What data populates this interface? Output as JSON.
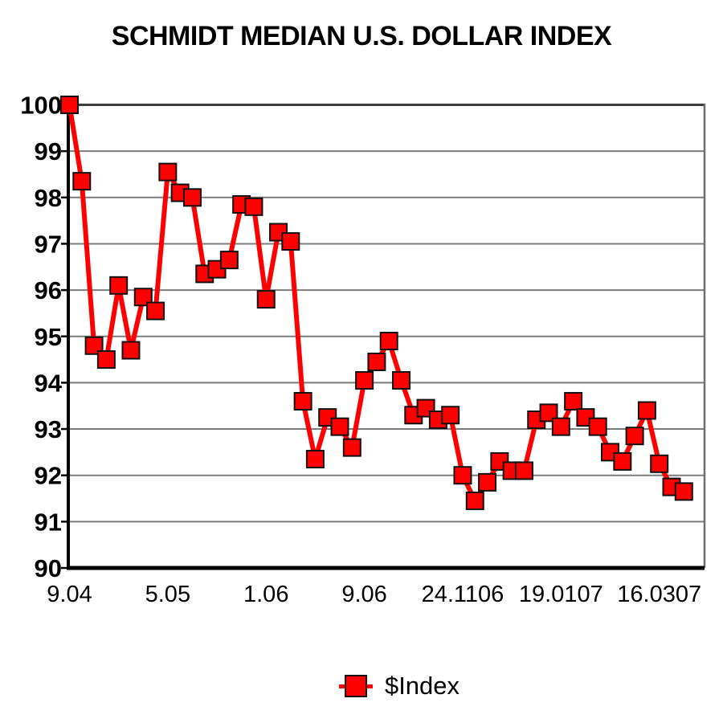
{
  "title": "SCHMIDT MEDIAN U.S. DOLLAR INDEX",
  "legend": {
    "label": "$Index"
  },
  "colors": {
    "series": "#ff0000",
    "marker_border": "#111111",
    "gridline": "#7b7b7b",
    "frame_top": "#3c3c3c",
    "frame_right": "#6e6e6e",
    "axis": "#000000",
    "background": "#ffffff",
    "text": "#000000"
  },
  "chart_data": {
    "type": "line",
    "title": "SCHMIDT MEDIAN U.S. DOLLAR INDEX",
    "marker": "square",
    "grid": "horizontal",
    "legend_position": "bottom",
    "ylim": [
      90,
      100
    ],
    "y_ticks": [
      90,
      91,
      92,
      93,
      94,
      95,
      96,
      97,
      98,
      99,
      100
    ],
    "x_tick_labels": [
      "9.04",
      "5.05",
      "1.06",
      "9.06",
      "24.1106",
      "19.0107",
      "16.0307"
    ],
    "x_tick_every": 8,
    "series": [
      {
        "name": "$Index",
        "values": [
          100.0,
          98.35,
          94.8,
          94.5,
          96.1,
          94.7,
          95.85,
          95.55,
          98.55,
          98.1,
          98.0,
          96.35,
          96.45,
          96.65,
          97.85,
          97.8,
          95.8,
          97.25,
          97.05,
          93.6,
          92.35,
          93.25,
          93.05,
          92.6,
          94.05,
          94.45,
          94.9,
          94.05,
          93.3,
          93.45,
          93.2,
          93.3,
          92.0,
          91.45,
          91.85,
          92.3,
          92.1,
          92.1,
          93.2,
          93.35,
          93.05,
          93.6,
          93.25,
          93.05,
          92.5,
          92.3,
          92.85,
          93.4,
          92.25,
          91.75,
          91.65
        ]
      }
    ]
  }
}
